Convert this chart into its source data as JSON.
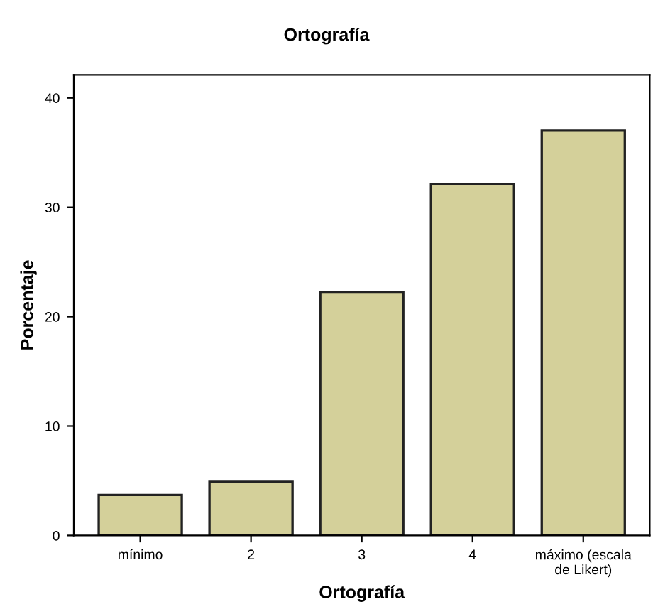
{
  "chart_data": {
    "type": "bar",
    "title": "Ortografía",
    "xlabel": "Ortografía",
    "ylabel": "Porcentaje",
    "categories": [
      "mínimo",
      "2",
      "3",
      "4",
      "máximo (escala\nde Likert)"
    ],
    "values": [
      3.7,
      4.9,
      22.2,
      32.1,
      37.0
    ],
    "color": "#d4d09a",
    "ylim": [
      0,
      42.1
    ],
    "yticks": [
      0,
      10,
      20,
      30,
      40
    ],
    "grid": false
  }
}
